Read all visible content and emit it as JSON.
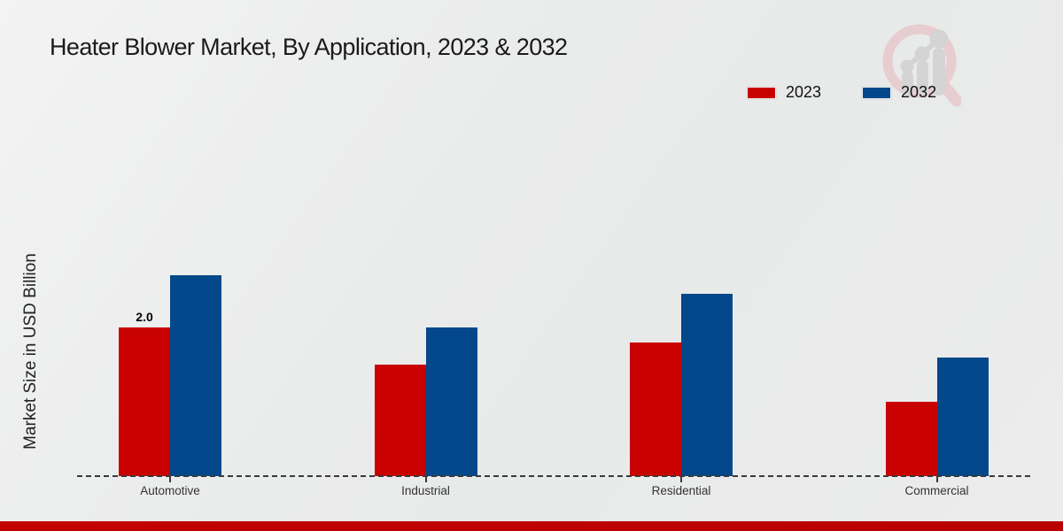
{
  "title": "Heater Blower Market, By Application, 2023 & 2032",
  "y_axis_label": "Market Size in USD Billion",
  "legend": {
    "items": [
      {
        "label": "2023",
        "color": "#c90000"
      },
      {
        "label": "2032",
        "color": "#02488a"
      }
    ],
    "position": "top-right"
  },
  "colors": {
    "series_2023": "#c90000",
    "series_2032": "#02488a",
    "footer_strip": "#c00000",
    "axis": "#3a3a3a",
    "background": "#ebecec"
  },
  "watermark_icon": "magnifier-growth-chart-icon",
  "chart_data": {
    "type": "bar",
    "categories": [
      "Automotive",
      "Industrial",
      "Residential",
      "Commercial"
    ],
    "series": [
      {
        "name": "2023",
        "color": "#c90000",
        "values": [
          2.0,
          1.5,
          1.8,
          1.0
        ]
      },
      {
        "name": "2032",
        "color": "#02488a",
        "values": [
          2.7,
          2.0,
          2.45,
          1.6
        ]
      }
    ],
    "title": "Heater Blower Market, By Application, 2023 & 2032",
    "xlabel": "",
    "ylabel": "Market Size in USD Billion",
    "ylim": [
      0,
      3.2
    ],
    "grid": false,
    "y_axis_ticks_visible": false,
    "legend_position": "top-right",
    "annotations": [
      {
        "category": "Automotive",
        "series": "2023",
        "text": "2.0"
      }
    ]
  }
}
